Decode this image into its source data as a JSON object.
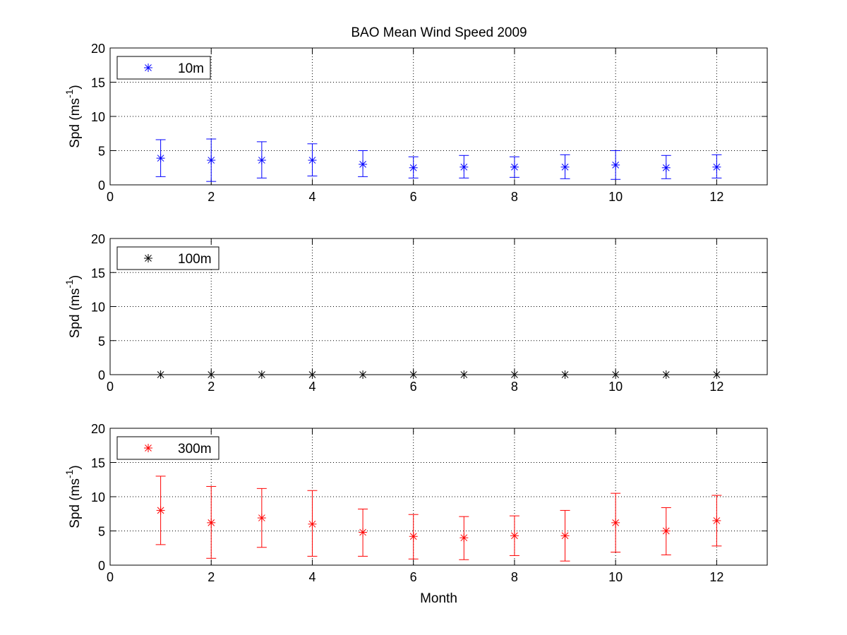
{
  "title": "BAO Mean Wind Speed  2009",
  "chart_data": [
    {
      "type": "scatter",
      "error_bars": true,
      "series": [
        {
          "name": "10m",
          "color": "#0000ff",
          "marker": "asterisk",
          "x": [
            1,
            2,
            3,
            4,
            5,
            6,
            7,
            8,
            9,
            10,
            11,
            12
          ],
          "y": [
            3.9,
            3.6,
            3.6,
            3.6,
            3.0,
            2.5,
            2.6,
            2.6,
            2.6,
            2.9,
            2.5,
            2.6
          ],
          "lower": [
            1.2,
            0.5,
            1.0,
            1.3,
            1.2,
            1.0,
            1.0,
            1.1,
            0.9,
            0.8,
            0.9,
            1.0
          ],
          "upper": [
            6.6,
            6.7,
            6.3,
            6.0,
            5.0,
            4.1,
            4.3,
            4.1,
            4.4,
            5.0,
            4.3,
            4.4
          ]
        }
      ],
      "xlabel": "",
      "ylabel": "Spd (ms",
      "ylabel_sup": "-1",
      "ylabel_end": ")",
      "xlim": [
        0,
        13
      ],
      "ylim": [
        0,
        20
      ],
      "xticks": [
        0,
        2,
        4,
        6,
        8,
        10,
        12
      ],
      "yticks": [
        0,
        5,
        10,
        15,
        20
      ],
      "grid": true,
      "legend": "top-left"
    },
    {
      "type": "scatter",
      "error_bars": false,
      "series": [
        {
          "name": "100m",
          "color": "#000000",
          "marker": "asterisk",
          "x": [
            1,
            2,
            3,
            4,
            5,
            6,
            7,
            8,
            9,
            10,
            11,
            12
          ],
          "y": [
            0,
            0,
            0,
            0,
            0,
            0,
            0,
            0,
            0,
            0,
            0,
            0
          ],
          "lower": [],
          "upper": []
        }
      ],
      "xlabel": "",
      "ylabel": "Spd (ms",
      "ylabel_sup": "-1",
      "ylabel_end": ")",
      "xlim": [
        0,
        13
      ],
      "ylim": [
        0,
        20
      ],
      "xticks": [
        0,
        2,
        4,
        6,
        8,
        10,
        12
      ],
      "yticks": [
        0,
        5,
        10,
        15,
        20
      ],
      "grid": true,
      "legend": "top-left"
    },
    {
      "type": "scatter",
      "error_bars": true,
      "series": [
        {
          "name": "300m",
          "color": "#ff0000",
          "marker": "asterisk",
          "x": [
            1,
            2,
            3,
            4,
            5,
            6,
            7,
            8,
            9,
            10,
            11,
            12
          ],
          "y": [
            8.0,
            6.2,
            6.9,
            6.0,
            4.8,
            4.2,
            4.0,
            4.3,
            4.3,
            6.2,
            5.0,
            6.5
          ],
          "lower": [
            3.0,
            1.0,
            2.6,
            1.3,
            1.3,
            0.9,
            0.8,
            1.4,
            0.6,
            1.9,
            1.5,
            2.8
          ],
          "upper": [
            13.0,
            11.5,
            11.2,
            10.9,
            8.2,
            7.4,
            7.1,
            7.2,
            8.0,
            10.5,
            8.4,
            10.2
          ]
        }
      ],
      "xlabel": "Month",
      "ylabel": "Spd (ms",
      "ylabel_sup": "-1",
      "ylabel_end": ")",
      "xlim": [
        0,
        13
      ],
      "ylim": [
        0,
        20
      ],
      "xticks": [
        0,
        2,
        4,
        6,
        8,
        10,
        12
      ],
      "yticks": [
        0,
        5,
        10,
        15,
        20
      ],
      "grid": true,
      "legend": "top-left"
    }
  ]
}
